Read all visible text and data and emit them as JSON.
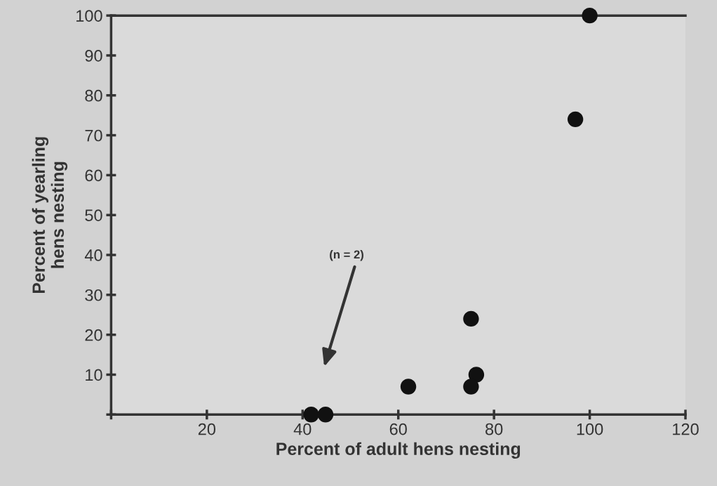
{
  "chart_data": {
    "type": "scatter",
    "xlabel": "Percent of adult hens nesting",
    "ylabel": "Percent of yearling\nhens nesting",
    "x": [
      100,
      97,
      75.2,
      76.3,
      75.2,
      62.1,
      41.8,
      44.8
    ],
    "values": [
      100,
      74,
      24,
      10,
      7,
      7,
      0,
      0
    ],
    "color": "#111111",
    "marker": "circle",
    "grid": false,
    "legend": false,
    "xlim": [
      0,
      120
    ],
    "ylim": [
      0,
      100
    ],
    "xticks": [
      {
        "value": 0,
        "label": null
      },
      20,
      40,
      60,
      80,
      100,
      120
    ],
    "yticks": [
      {
        "value": 0,
        "label": null
      },
      10,
      20,
      30,
      40,
      50,
      60,
      70,
      80,
      90,
      100
    ],
    "annotations": [
      "(n = 2)"
    ]
  }
}
